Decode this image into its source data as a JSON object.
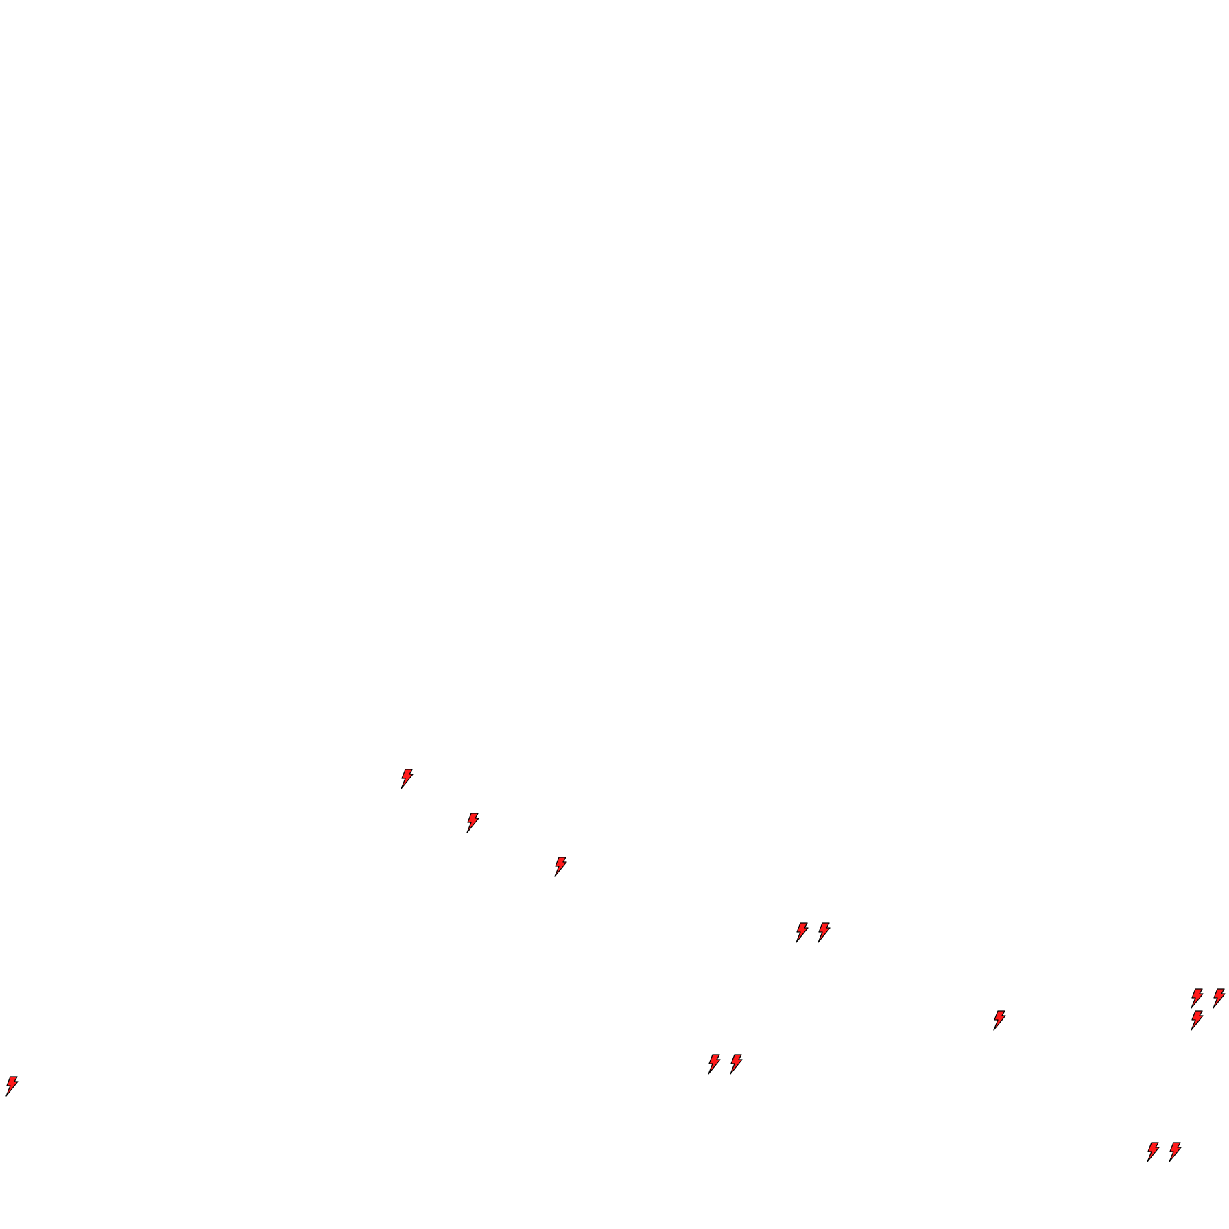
{
  "icons": {
    "name": "lightning-bolt-icon",
    "count": 14,
    "fill": "#ff1a1a",
    "stroke": "#000000"
  },
  "background": "#ffffff"
}
